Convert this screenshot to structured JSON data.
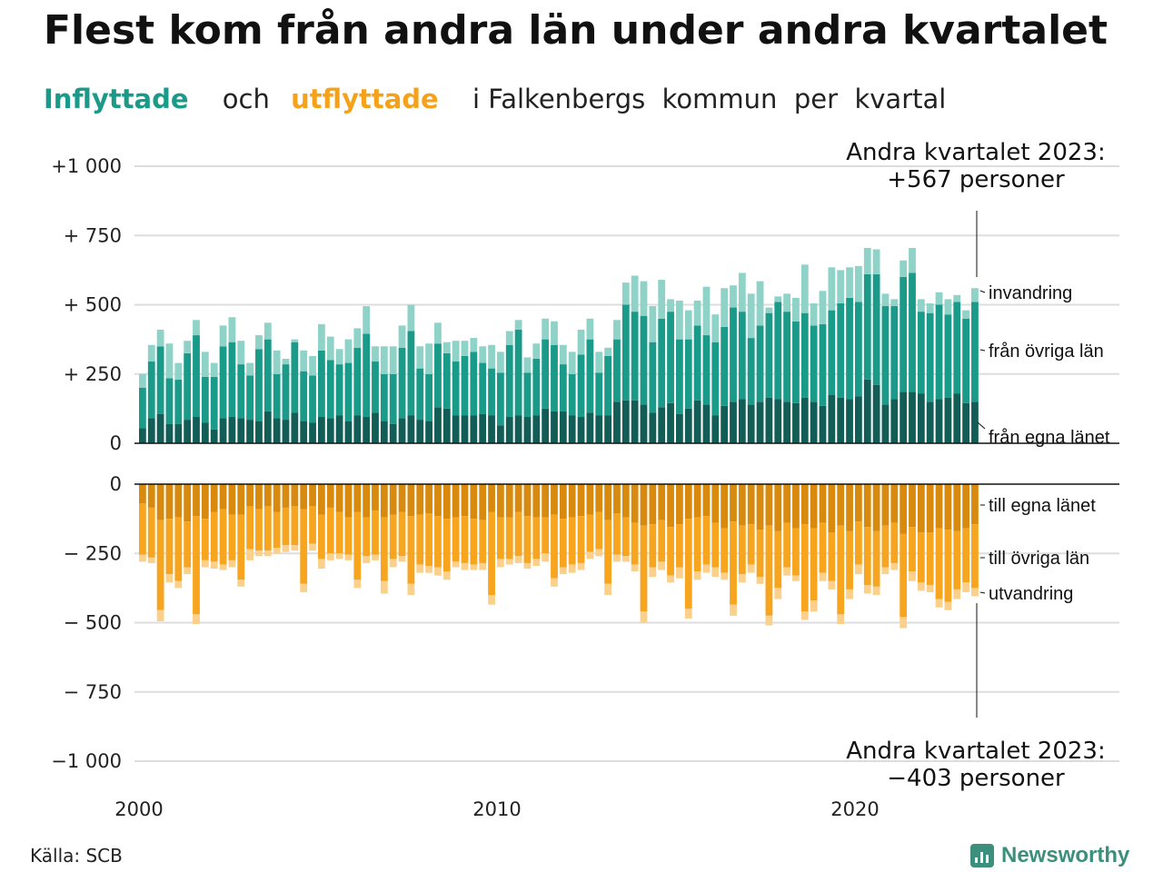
{
  "title": "Flest kom från andra län under andra kvartalet",
  "subtitle": {
    "in_word": "Inflyttade",
    "and_word": "och",
    "out_word": "utflyttade",
    "rest": "i Falkenbergs  kommun  per  kvartal"
  },
  "source": "Källa: SCB",
  "logo_text": "Newsworthy",
  "colors": {
    "in_local": "#125e56",
    "in_other": "#1a9a89",
    "in_immig": "#8fd3c8",
    "out_local": "#d88a0f",
    "out_other": "#f7a51f",
    "out_emig": "#fbd08a",
    "grid": "#dddddd",
    "accent_in": "#1a9a89",
    "accent_out": "#f5a21a"
  },
  "chart_data": {
    "type": "bar",
    "stacked": true,
    "start": "2000 Q1",
    "end": "2023 Q2",
    "x_ticks": [
      "2000",
      "2010",
      "2020"
    ],
    "top_panel": {
      "y_ticks": [
        "+1 000",
        "+  750",
        "+  500",
        "+  250",
        "0"
      ],
      "ylim": [
        0,
        1000
      ],
      "series": [
        {
          "name": "från egna länet",
          "values": [
            55,
            90,
            105,
            70,
            70,
            85,
            95,
            75,
            50,
            90,
            95,
            90,
            85,
            80,
            115,
            90,
            85,
            110,
            80,
            75,
            95,
            90,
            100,
            80,
            100,
            95,
            110,
            80,
            70,
            90,
            100,
            85,
            80,
            130,
            125,
            100,
            100,
            100,
            105,
            100,
            65,
            95,
            100,
            95,
            100,
            125,
            115,
            115,
            100,
            95,
            110,
            100,
            100,
            150,
            155,
            155,
            140,
            110,
            130,
            145,
            105,
            125,
            155,
            140,
            100,
            135,
            150,
            160,
            140,
            150,
            165,
            160,
            150,
            145,
            165,
            150,
            135,
            175,
            165,
            160,
            170,
            230,
            210,
            140,
            160,
            185,
            185,
            180,
            150,
            160,
            165,
            180,
            145,
            150
          ]
        },
        {
          "name": "från övriga län",
          "values": [
            145,
            205,
            245,
            165,
            160,
            240,
            295,
            165,
            190,
            260,
            270,
            195,
            160,
            260,
            260,
            160,
            200,
            255,
            180,
            170,
            240,
            210,
            185,
            210,
            245,
            300,
            185,
            170,
            180,
            255,
            305,
            185,
            170,
            230,
            200,
            195,
            215,
            230,
            185,
            170,
            190,
            260,
            310,
            160,
            205,
            250,
            240,
            170,
            150,
            225,
            265,
            155,
            215,
            225,
            345,
            320,
            320,
            255,
            320,
            330,
            270,
            250,
            270,
            250,
            265,
            285,
            340,
            315,
            240,
            275,
            305,
            350,
            325,
            295,
            305,
            275,
            295,
            305,
            340,
            365,
            340,
            380,
            400,
            355,
            335,
            415,
            430,
            295,
            320,
            340,
            300,
            330,
            305,
            360
          ]
        },
        {
          "name": "invandring",
          "values": [
            50,
            60,
            60,
            125,
            60,
            45,
            55,
            90,
            50,
            75,
            90,
            85,
            45,
            50,
            60,
            85,
            20,
            10,
            75,
            70,
            95,
            85,
            55,
            85,
            70,
            100,
            55,
            100,
            100,
            80,
            95,
            80,
            110,
            75,
            40,
            75,
            55,
            50,
            60,
            85,
            75,
            50,
            35,
            55,
            55,
            75,
            85,
            70,
            80,
            90,
            75,
            75,
            30,
            70,
            80,
            130,
            125,
            130,
            140,
            45,
            140,
            105,
            90,
            175,
            100,
            140,
            80,
            140,
            160,
            160,
            20,
            20,
            65,
            85,
            175,
            80,
            120,
            155,
            120,
            110,
            130,
            95,
            90,
            45,
            25,
            60,
            90,
            45,
            35,
            45,
            55,
            25,
            30,
            50
          ]
        }
      ],
      "series_labels": [
        "invandring",
        "från övriga län",
        "från egna länet"
      ],
      "annotation": {
        "line1": "Andra kvartalet 2023:",
        "line2": "+567 personer"
      }
    },
    "bottom_panel": {
      "y_ticks": [
        "0",
        "−  250",
        "−  500",
        "−  750",
        "−1 000"
      ],
      "ylim": [
        -1000,
        0
      ],
      "series": [
        {
          "name": "till egna länet",
          "values": [
            -70,
            -85,
            -130,
            -125,
            -120,
            -135,
            -115,
            -125,
            -100,
            -90,
            -110,
            -110,
            -80,
            -90,
            -80,
            -100,
            -85,
            -80,
            -90,
            -80,
            -110,
            -85,
            -100,
            -120,
            -100,
            -120,
            -95,
            -120,
            -110,
            -100,
            -115,
            -110,
            -105,
            -115,
            -125,
            -120,
            -115,
            -125,
            -130,
            -100,
            -120,
            -120,
            -100,
            -115,
            -120,
            -120,
            -110,
            -125,
            -120,
            -115,
            -110,
            -100,
            -130,
            -105,
            -120,
            -140,
            -150,
            -145,
            -130,
            -155,
            -145,
            -125,
            -120,
            -115,
            -140,
            -160,
            -135,
            -150,
            -145,
            -165,
            -150,
            -170,
            -140,
            -160,
            -145,
            -160,
            -140,
            -175,
            -150,
            -170,
            -135,
            -155,
            -170,
            -150,
            -140,
            -180,
            -155,
            -175,
            -175,
            -160,
            -165,
            -170,
            -160,
            -145
          ]
        },
        {
          "name": "till övriga län",
          "values": [
            -185,
            -180,
            -325,
            -200,
            -230,
            -165,
            -355,
            -150,
            -180,
            -200,
            -165,
            -235,
            -155,
            -150,
            -160,
            -130,
            -135,
            -140,
            -270,
            -135,
            -160,
            -165,
            -150,
            -135,
            -245,
            -140,
            -160,
            -230,
            -160,
            -160,
            -245,
            -180,
            -190,
            -185,
            -190,
            -160,
            -170,
            -165,
            -155,
            -300,
            -150,
            -150,
            -160,
            -170,
            -150,
            -130,
            -230,
            -175,
            -170,
            -170,
            -135,
            -135,
            -230,
            -150,
            -140,
            -150,
            -310,
            -155,
            -150,
            -175,
            -155,
            -325,
            -195,
            -175,
            -160,
            -160,
            -300,
            -175,
            -145,
            -170,
            -325,
            -205,
            -160,
            -170,
            -315,
            -260,
            -180,
            -175,
            -320,
            -210,
            -155,
            -210,
            -200,
            -150,
            -145,
            -300,
            -160,
            -180,
            -190,
            -255,
            -260,
            -210,
            -195,
            -230
          ]
        },
        {
          "name": "utvandring",
          "values": [
            -25,
            -20,
            -40,
            -30,
            -25,
            -25,
            -35,
            -25,
            -25,
            -20,
            -25,
            -25,
            -40,
            -20,
            -20,
            -20,
            -25,
            -20,
            -30,
            -25,
            -35,
            -25,
            -20,
            -20,
            -30,
            -25,
            -20,
            -45,
            -30,
            -20,
            -40,
            -30,
            -25,
            -30,
            -30,
            -20,
            -25,
            -20,
            -25,
            -35,
            -30,
            -20,
            -25,
            -20,
            -25,
            -30,
            -30,
            -25,
            -30,
            -25,
            -25,
            -25,
            -40,
            -25,
            -20,
            -25,
            -40,
            -35,
            -30,
            -25,
            -40,
            -35,
            -30,
            -30,
            -35,
            -25,
            -40,
            -30,
            -30,
            -25,
            -35,
            -40,
            -30,
            -20,
            -30,
            -40,
            -30,
            -30,
            -35,
            -35,
            -35,
            -30,
            -30,
            -25,
            -25,
            -40,
            -35,
            -30,
            -25,
            -30,
            -30,
            -35,
            -35,
            -30
          ]
        }
      ],
      "series_labels": [
        "till egna länet",
        "till övriga län",
        "utvandring"
      ],
      "annotation": {
        "line1": "Andra kvartalet 2023:",
        "line2": "−403 personer"
      }
    }
  }
}
